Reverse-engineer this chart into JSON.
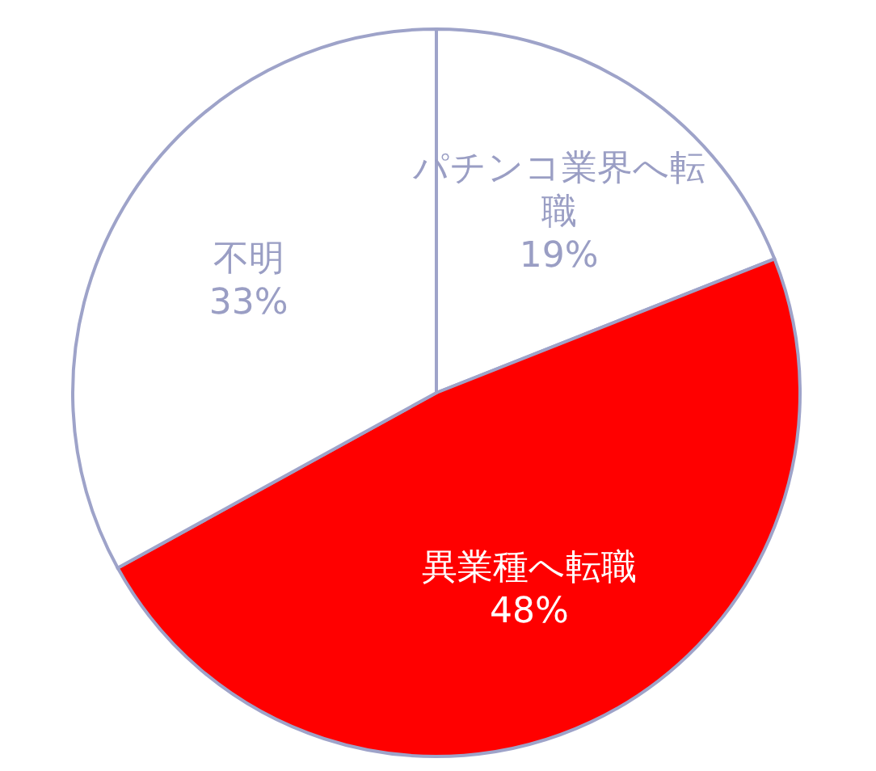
{
  "chart_data": {
    "type": "pie",
    "categories": [
      "パチンコ業界へ転職",
      "異業種へ転職",
      "不明"
    ],
    "values": [
      19,
      48,
      33
    ],
    "value_labels": [
      "19%",
      "48%",
      "33%"
    ],
    "colors": [
      "#ffffff",
      "#ff0000",
      "#ffffff"
    ]
  }
}
